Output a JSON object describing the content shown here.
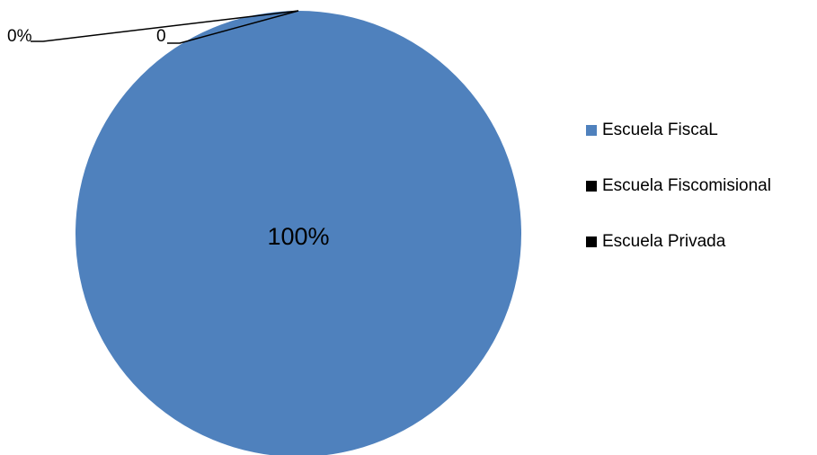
{
  "chart_data": {
    "type": "pie",
    "slices": [
      {
        "name": "Escuela FiscaL",
        "value": 100,
        "color": "#4f81bd",
        "label": "100%"
      },
      {
        "name": "Escuela Fiscomisional",
        "value": 0,
        "color": "#000000",
        "label": "0"
      },
      {
        "name": "Escuela Privada",
        "value": 0,
        "color": "#000000",
        "label": "0%"
      }
    ],
    "legend_position": "right"
  }
}
